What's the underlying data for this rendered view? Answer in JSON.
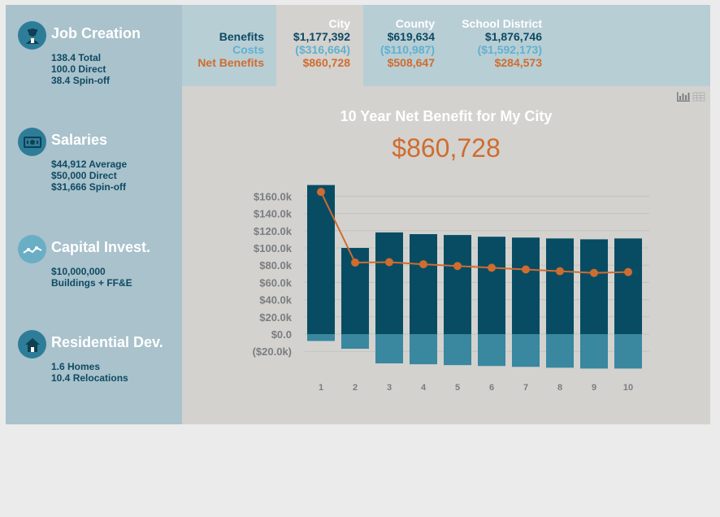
{
  "sidebar": {
    "metrics": [
      {
        "title": "Job Creation",
        "icon": "worker-icon",
        "lines": [
          "138.4 Total",
          "100.0 Direct",
          "38.4 Spin-off"
        ]
      },
      {
        "title": "Salaries",
        "icon": "money-icon",
        "lines": [
          "$44,912 Average",
          "$50,000 Direct",
          "$31,666 Spin-off"
        ]
      },
      {
        "title": "Capital Invest.",
        "icon": "investment-chart-icon",
        "lines": [
          "$10,000,000",
          "Buildings + FF&E"
        ]
      },
      {
        "title": "Residential Dev.",
        "icon": "house-icon",
        "lines": [
          "1.6 Homes",
          "10.4 Relocations"
        ]
      }
    ]
  },
  "summary": {
    "row_labels": {
      "benefits": "Benefits",
      "costs": "Costs",
      "net": "Net Benefits"
    },
    "columns": [
      {
        "header": "City",
        "benefits": "$1,177,392",
        "costs": "($316,664)",
        "net": "$860,728"
      },
      {
        "header": "County",
        "benefits": "$619,634",
        "costs": "($110,987)",
        "net": "$508,647"
      },
      {
        "header": "School District",
        "benefits": "$1,876,746",
        "costs": "($1,592,173)",
        "net": "$284,573"
      }
    ]
  },
  "view_icons": [
    "bar-chart-view-icon",
    "table-view-icon"
  ],
  "chart": {
    "title": "10 Year Net Benefit for My City",
    "headline_value": "$860,728"
  },
  "colors": {
    "benefit_bar": "#084c64",
    "cost_bar": "#3a87a0",
    "net_line": "#d06c2e",
    "sidebar": "#a9c2cc",
    "summary_bg": "#b8ced5",
    "panel_bg": "#d3d2cf"
  },
  "chart_data": {
    "type": "bar",
    "categories": [
      "1",
      "2",
      "3",
      "4",
      "5",
      "6",
      "7",
      "8",
      "9",
      "10"
    ],
    "series": [
      {
        "type": "bar",
        "values": [
          173,
          100,
          118,
          116,
          115,
          113,
          112,
          111,
          110,
          111
        ]
      },
      {
        "type": "bar",
        "values": [
          -8,
          -17,
          -34,
          -35,
          -36,
          -37,
          -38,
          -39,
          -40,
          -40
        ]
      },
      {
        "type": "line",
        "values": [
          165,
          83,
          83.5,
          81,
          79,
          77,
          75,
          73,
          71,
          72
        ]
      }
    ],
    "y_ticks": [
      "($20.0k)",
      "$0.0",
      "$20.0k",
      "$40.0k",
      "$60.0k",
      "$80.0k",
      "$100.0k",
      "$120.0k",
      "$140.0k",
      "$160.0k"
    ],
    "ylim": [
      -40,
      175
    ],
    "grid": true,
    "stacked": true
  }
}
